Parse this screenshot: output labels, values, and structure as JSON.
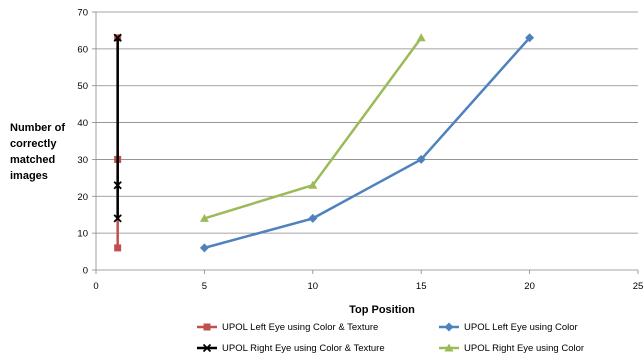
{
  "chart_data": {
    "type": "line",
    "title": "",
    "xlabel": "Top Position",
    "ylabel": [
      "Number of",
      "correctly",
      "matched",
      "images"
    ],
    "xlim": [
      0,
      25
    ],
    "ylim": [
      0,
      70
    ],
    "x_ticks": [
      0,
      5,
      10,
      15,
      20,
      25
    ],
    "y_ticks": [
      0,
      10,
      20,
      30,
      40,
      50,
      60,
      70
    ],
    "grid": "horizontal",
    "legend_position": "bottom",
    "series": [
      {
        "name": "UPOL Left Eye using Color & Texture",
        "color": "#C0504D",
        "marker": "square",
        "x": [
          1,
          1,
          1
        ],
        "y": [
          6,
          30,
          63
        ]
      },
      {
        "name": "UPOL Left Eye using Color",
        "color": "#4F81BD",
        "marker": "diamond",
        "x": [
          5,
          10,
          15,
          20
        ],
        "y": [
          6,
          14,
          30,
          63
        ]
      },
      {
        "name": "UPOL Right Eye using Color & Texture",
        "color": "#000000",
        "marker": "x",
        "x": [
          1,
          1,
          1
        ],
        "y": [
          14,
          23,
          63
        ]
      },
      {
        "name": "UPOL Right Eye using Color",
        "color": "#9BBB59",
        "marker": "triangle",
        "x": [
          5,
          10,
          15
        ],
        "y": [
          14,
          23,
          63
        ]
      }
    ]
  }
}
